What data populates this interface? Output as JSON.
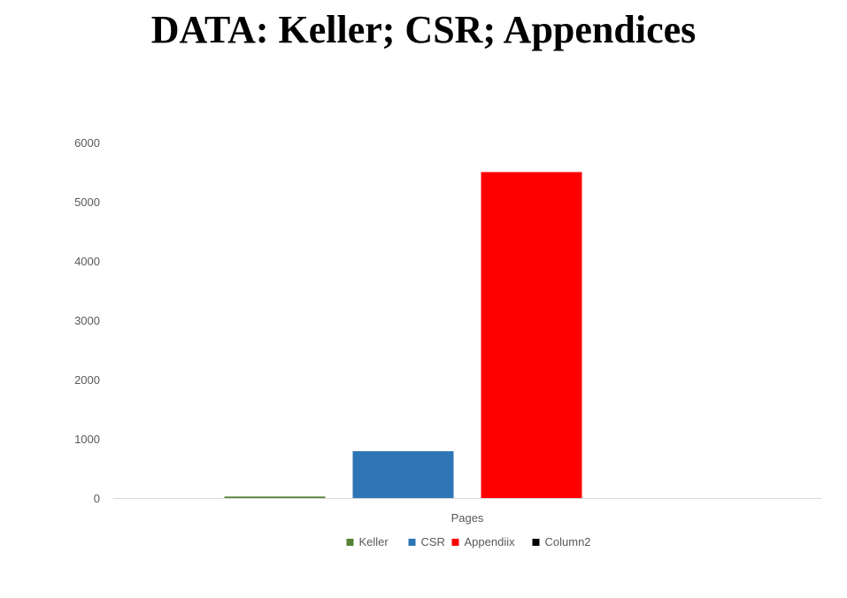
{
  "slide": {
    "title": "DATA:  Keller; CSR; Appendices"
  },
  "chart_data": {
    "type": "bar",
    "categories": [
      "Pages"
    ],
    "series": [
      {
        "name": "Keller",
        "values": [
          25
        ],
        "color": "#548235"
      },
      {
        "name": "CSR",
        "values": [
          790
        ],
        "color": "#2E75B6"
      },
      {
        "name": "Appendiix",
        "values": [
          5500
        ],
        "color": "#FF0000"
      },
      {
        "name": "Column2",
        "values": [
          0
        ],
        "color": "#000000"
      }
    ],
    "yticks": [
      "0",
      "1000",
      "2000",
      "3000",
      "4000",
      "5000",
      "6000"
    ],
    "ylim": [
      0,
      6000
    ],
    "title": "",
    "xlabel": "",
    "ylabel": "",
    "legend_position": "bottom",
    "grid": false
  }
}
